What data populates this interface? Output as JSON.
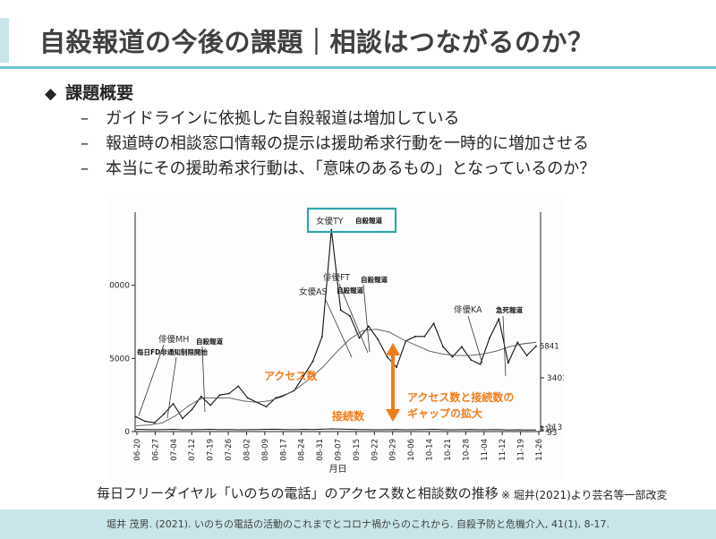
{
  "slide": {
    "title": "自殺報道の今後の課題｜相談はつながるのか？",
    "heading_marker": "◆",
    "heading": "課題概要",
    "sub_dash": "–",
    "points": [
      "ガイドラインに依拠した自殺報道は増加している",
      "報道時の相談窓口情報の提示は援助希求行動を一時的に増加させる",
      "本当にその援助希求行動は、「意味のあるもの」となっているのか？"
    ],
    "caption": "毎日フリーダイヤル「いのちの電話」のアクセス数と相談数の推移",
    "caption_note": "※ 堀井(2021)より芸名等一部改変",
    "footer": "堀井 茂男. (2021). いのちの電話の活動のこれまでとコロナ禍からのこれから. 自殺予防と危機介入, 41(1), 8-17."
  },
  "colors": {
    "accent": "#6cc3cf",
    "accent_light": "#c8e6ea",
    "annotation": "#f07d1a",
    "highlight_box": "#2fa6ad"
  },
  "chart_data": {
    "type": "line",
    "xlabel": "月日",
    "ylabel": "",
    "x_ticks": [
      "06-20",
      "06-27",
      "07-04",
      "07-12",
      "07-19",
      "07-26",
      "08-02",
      "08-09",
      "08-17",
      "08-24",
      "08-31",
      "09-07",
      "09-15",
      "09-22",
      "09-29",
      "10-06",
      "10-14",
      "10-21",
      "10-28",
      "11-04",
      "11-12",
      "11-19",
      "11-26"
    ],
    "y_ticks": [
      0,
      5000,
      10000
    ],
    "ylim": [
      0,
      15000
    ],
    "right_ticks": [
      "3403",
      "113",
      "93"
    ],
    "series": [
      {
        "name": "アクセス数",
        "values": [
          1000,
          700,
          600,
          1200,
          1900,
          900,
          1500,
          2400,
          1800,
          2500,
          2600,
          3100,
          2300,
          2000,
          1700,
          2300,
          2500,
          2800,
          3800,
          4800,
          6500,
          13800,
          8300,
          7900,
          6400,
          7200,
          6300,
          5100,
          4400,
          6200,
          6500,
          6500,
          7400,
          5800,
          5100,
          5800,
          4900,
          4600,
          6400,
          7700,
          4700,
          6100,
          5200,
          5841
        ]
      },
      {
        "name": "接続数",
        "values": [
          150,
          140,
          130,
          140,
          150,
          120,
          130,
          140,
          150,
          130,
          140,
          120,
          130,
          140,
          150,
          160,
          140,
          130,
          150,
          140,
          160,
          180,
          170,
          150,
          140,
          130,
          120,
          130,
          140,
          120,
          130,
          140,
          150,
          130,
          120,
          130,
          140,
          120,
          130,
          140,
          110,
          120,
          110,
          113
        ]
      }
    ],
    "trend": {
      "values": [
        400,
        450,
        600,
        1100,
        1800,
        2300,
        2300,
        2300,
        2100,
        2000,
        2100,
        2400,
        2900,
        3600,
        4400,
        5400,
        6300,
        6900,
        7000,
        6800,
        6300,
        5900,
        5500,
        5300,
        5200,
        5200,
        5300,
        5500,
        5800,
        6000,
        6100
      ]
    },
    "end_labels": [
      "5841",
      "113"
    ],
    "annotations": [
      {
        "lines": [
          "俳優MH"
        ],
        "emphasis": "自殺報道"
      },
      {
        "lines": [
          "毎日FD非通知制限開始"
        ]
      },
      {
        "lines": [
          "女優AS"
        ],
        "emphasis": "自殺報道"
      },
      {
        "lines": [
          "俳優FT"
        ],
        "emphasis": "自殺報道"
      },
      {
        "lines": [
          "女優TY"
        ],
        "emphasis": "自殺報道"
      },
      {
        "lines": [
          "俳優KA"
        ],
        "emphasis": "急死報道"
      }
    ],
    "series_labels": [
      "アクセス数",
      "接続数"
    ],
    "gap_label": [
      "アクセス数と接続数の",
      "ギャップの拡大"
    ]
  }
}
